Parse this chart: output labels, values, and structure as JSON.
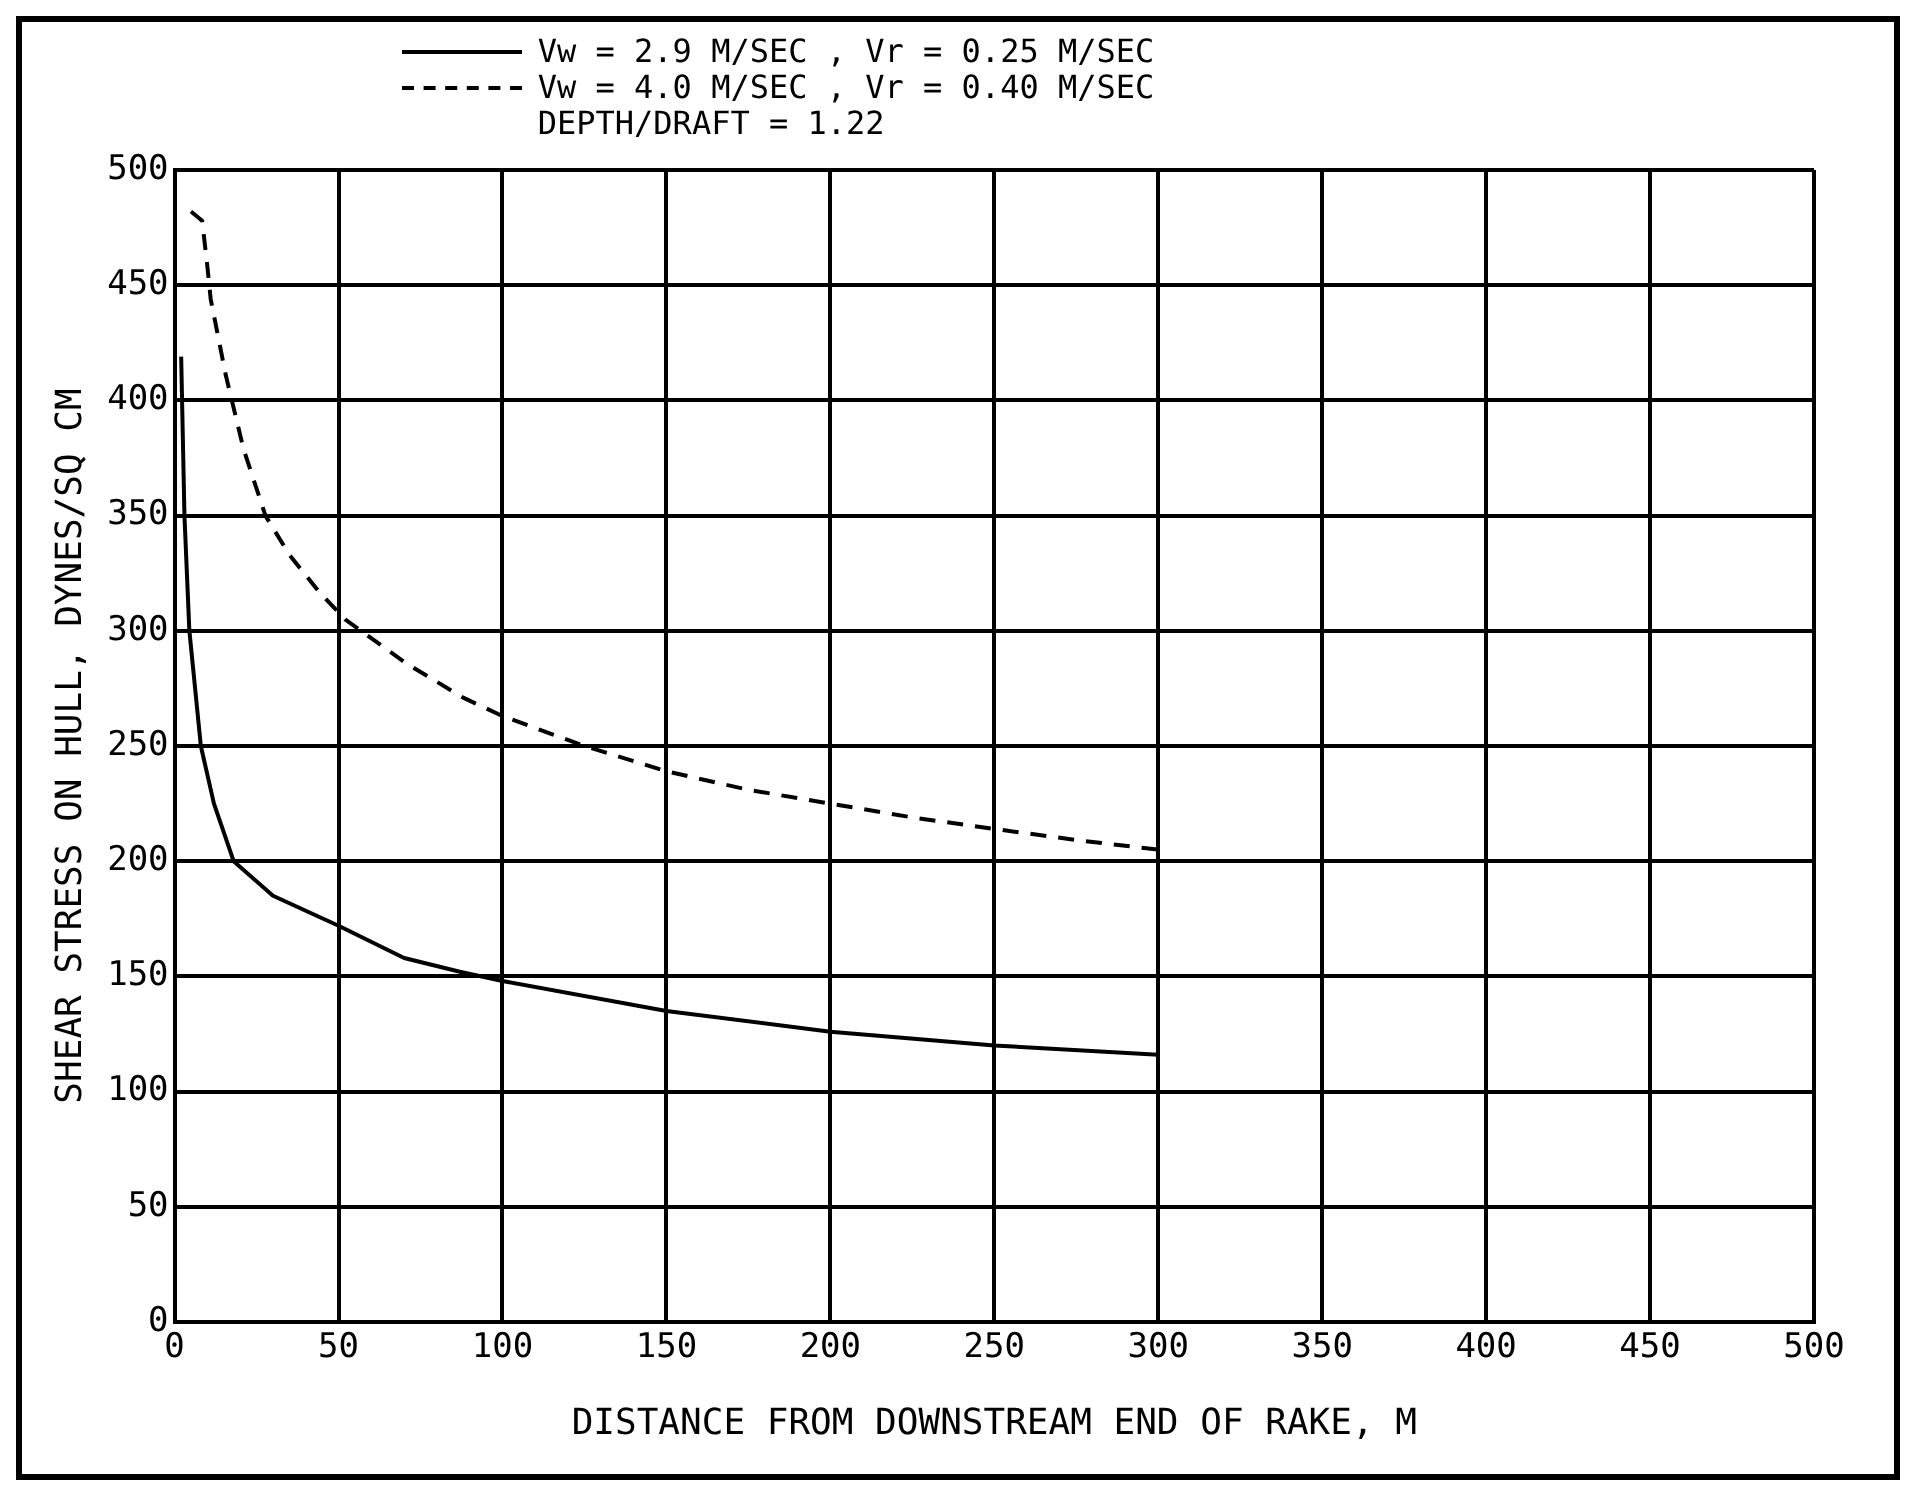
{
  "chart_data": {
    "type": "line",
    "xlabel": "DISTANCE FROM DOWNSTREAM END OF RAKE, M",
    "ylabel": "SHEAR STRESS ON HULL, DYNES/SQ CM",
    "annotations": [
      "DEPTH/DRAFT = 1.22"
    ],
    "series": [
      {
        "name": "Vw = 2.9 M/SEC , Vr = 0.25 M/SEC",
        "color": "#000000",
        "line_style": "solid",
        "x": [
          2,
          3,
          4.5,
          8,
          12,
          18,
          30,
          50,
          70,
          87,
          100,
          150,
          200,
          250,
          300
        ],
        "values": [
          419,
          350,
          300,
          250,
          225,
          200,
          185,
          172,
          158,
          152,
          148,
          135,
          126,
          120,
          116
        ]
      },
      {
        "name": "Vw = 4.0 M/SEC , Vr = 0.40 M/SEC",
        "color": "#000000",
        "line_style": "dashed",
        "x": [
          5,
          8.4,
          10,
          11,
          15.6,
          21,
          27.7,
          35,
          44,
          52,
          70.5,
          88,
          100,
          125,
          150,
          175,
          200,
          225,
          250,
          276,
          300
        ],
        "values": [
          482,
          478,
          458,
          444,
          411,
          379,
          350,
          333,
          317,
          305,
          286,
          271,
          263,
          250,
          239,
          231,
          225,
          219,
          214,
          209,
          205
        ]
      }
    ],
    "xlim": [
      0,
      500
    ],
    "xticks": [
      0,
      50,
      100,
      150,
      200,
      250,
      300,
      350,
      400,
      450,
      500
    ],
    "ylim": [
      0,
      500
    ],
    "yticks": [
      0,
      50,
      100,
      150,
      200,
      250,
      300,
      350,
      400,
      450,
      500
    ],
    "grid": true,
    "legend": "top",
    "marker": "none"
  }
}
